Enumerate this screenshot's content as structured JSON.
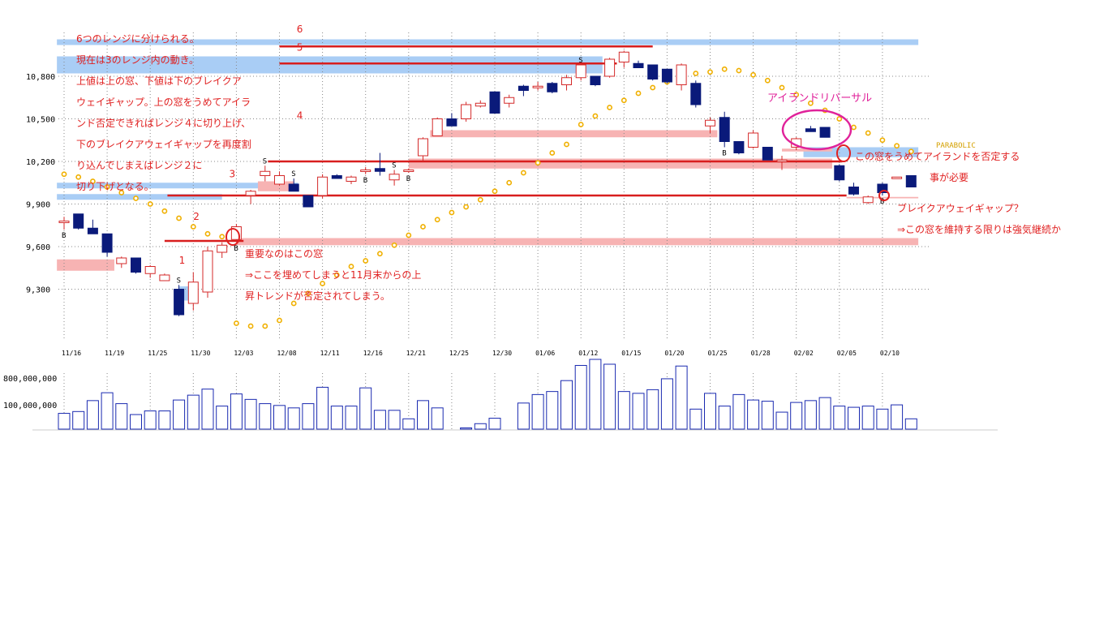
{
  "chart_data": {
    "type": "candlestick",
    "price_ticks": [
      {
        "value": 10800,
        "label": "10,800"
      },
      {
        "value": 10500,
        "label": "10,500"
      },
      {
        "value": 10200,
        "label": "10,200"
      },
      {
        "value": 9900,
        "label": "9,900"
      },
      {
        "value": 9600,
        "label": "9,600"
      },
      {
        "value": 9300,
        "label": "9,300"
      }
    ],
    "volume_ticks": [
      {
        "value": 800000000,
        "label": "800,000,000"
      },
      {
        "value": 100000000,
        "label": "100,000,000"
      }
    ],
    "date_labels": [
      {
        "i": 0,
        "label": "11/16"
      },
      {
        "i": 3,
        "label": "11/19"
      },
      {
        "i": 6,
        "label": "11/25"
      },
      {
        "i": 9,
        "label": "11/30"
      },
      {
        "i": 12,
        "label": "12/03"
      },
      {
        "i": 15,
        "label": "12/08"
      },
      {
        "i": 18,
        "label": "12/11"
      },
      {
        "i": 21,
        "label": "12/16"
      },
      {
        "i": 24,
        "label": "12/21"
      },
      {
        "i": 27,
        "label": "12/25"
      },
      {
        "i": 30,
        "label": "12/30"
      },
      {
        "i": 33,
        "label": "01/06"
      },
      {
        "i": 36,
        "label": "01/12"
      },
      {
        "i": 39,
        "label": "01/15"
      },
      {
        "i": 42,
        "label": "01/20"
      },
      {
        "i": 45,
        "label": "01/25"
      },
      {
        "i": 48,
        "label": "01/28"
      },
      {
        "i": 51,
        "label": "02/02"
      },
      {
        "i": 54,
        "label": "02/05"
      },
      {
        "i": 57,
        "label": "02/10"
      }
    ],
    "candles": [
      {
        "o": 9780,
        "h": 9810,
        "l": 9720,
        "c": 9780
      },
      {
        "o": 9830,
        "h": 9830,
        "l": 9720,
        "c": 9730
      },
      {
        "o": 9730,
        "h": 9790,
        "l": 9690,
        "c": 9690
      },
      {
        "o": 9690,
        "h": 9690,
        "l": 9530,
        "c": 9560
      },
      {
        "o": 9480,
        "h": 9530,
        "l": 9450,
        "c": 9520
      },
      {
        "o": 9520,
        "h": 9520,
        "l": 9410,
        "c": 9420
      },
      {
        "o": 9410,
        "h": 9470,
        "l": 9380,
        "c": 9460
      },
      {
        "o": 9360,
        "h": 9410,
        "l": 9360,
        "c": 9400
      },
      {
        "o": 9300,
        "h": 9330,
        "l": 9110,
        "c": 9120
      },
      {
        "o": 9200,
        "h": 9420,
        "l": 9150,
        "c": 9350
      },
      {
        "o": 9280,
        "h": 9600,
        "l": 9240,
        "c": 9570
      },
      {
        "o": 9560,
        "h": 9630,
        "l": 9520,
        "c": 9610
      },
      {
        "o": 9650,
        "h": 9760,
        "l": 9630,
        "c": 9740
      },
      {
        "o": 9960,
        "h": 10000,
        "l": 9900,
        "c": 9990
      },
      {
        "o": 10100,
        "h": 10170,
        "l": 10060,
        "c": 10130
      },
      {
        "o": 10040,
        "h": 10130,
        "l": 10030,
        "c": 10100
      },
      {
        "o": 10040,
        "h": 10080,
        "l": 9990,
        "c": 9990
      },
      {
        "o": 9960,
        "h": 9960,
        "l": 9880,
        "c": 9880
      },
      {
        "o": 9960,
        "h": 10110,
        "l": 9940,
        "c": 10090
      },
      {
        "o": 10100,
        "h": 10110,
        "l": 10080,
        "c": 10080
      },
      {
        "o": 10060,
        "h": 10100,
        "l": 10040,
        "c": 10090
      },
      {
        "o": 10140,
        "h": 10160,
        "l": 10110,
        "c": 10140
      },
      {
        "o": 10150,
        "h": 10260,
        "l": 10100,
        "c": 10130
      },
      {
        "o": 10070,
        "h": 10140,
        "l": 10030,
        "c": 10110
      },
      {
        "o": 10140,
        "h": 10150,
        "l": 10120,
        "c": 10140
      },
      {
        "o": 10240,
        "h": 10370,
        "l": 10200,
        "c": 10360
      },
      {
        "o": 10380,
        "h": 10510,
        "l": 10380,
        "c": 10500
      },
      {
        "o": 10500,
        "h": 10540,
        "l": 10450,
        "c": 10450
      },
      {
        "o": 10500,
        "h": 10620,
        "l": 10480,
        "c": 10600
      },
      {
        "o": 10590,
        "h": 10630,
        "l": 10580,
        "c": 10610
      },
      {
        "o": 10690,
        "h": 10690,
        "l": 10540,
        "c": 10540
      },
      {
        "o": 10610,
        "h": 10670,
        "l": 10580,
        "c": 10650
      },
      {
        "o": 10730,
        "h": 10740,
        "l": 10660,
        "c": 10700
      },
      {
        "o": 10720,
        "h": 10760,
        "l": 10700,
        "c": 10730
      },
      {
        "o": 10750,
        "h": 10760,
        "l": 10680,
        "c": 10690
      },
      {
        "o": 10740,
        "h": 10810,
        "l": 10700,
        "c": 10790
      },
      {
        "o": 10790,
        "h": 10880,
        "l": 10770,
        "c": 10880
      },
      {
        "o": 10800,
        "h": 10800,
        "l": 10730,
        "c": 10740
      },
      {
        "o": 10800,
        "h": 10930,
        "l": 10790,
        "c": 10920
      },
      {
        "o": 10900,
        "h": 10980,
        "l": 10860,
        "c": 10970
      },
      {
        "o": 10890,
        "h": 10910,
        "l": 10860,
        "c": 10860
      },
      {
        "o": 10880,
        "h": 10880,
        "l": 10770,
        "c": 10780
      },
      {
        "o": 10850,
        "h": 10850,
        "l": 10750,
        "c": 10760
      },
      {
        "o": 10740,
        "h": 10890,
        "l": 10700,
        "c": 10880
      },
      {
        "o": 10750,
        "h": 10770,
        "l": 10580,
        "c": 10600
      },
      {
        "o": 10450,
        "h": 10510,
        "l": 10400,
        "c": 10490
      },
      {
        "o": 10510,
        "h": 10550,
        "l": 10300,
        "c": 10340
      },
      {
        "o": 10340,
        "h": 10340,
        "l": 10250,
        "c": 10260
      },
      {
        "o": 10300,
        "h": 10420,
        "l": 10290,
        "c": 10400
      },
      {
        "o": 10300,
        "h": 10300,
        "l": 10210,
        "c": 10210
      },
      {
        "o": 10210,
        "h": 10240,
        "l": 10140,
        "c": 10210
      },
      {
        "o": 10300,
        "h": 10370,
        "l": 10280,
        "c": 10360
      },
      {
        "o": 10430,
        "h": 10450,
        "l": 10410,
        "c": 10410
      },
      {
        "o": 10440,
        "h": 10440,
        "l": 10370,
        "c": 10370
      },
      {
        "o": 10170,
        "h": 10180,
        "l": 10060,
        "c": 10070
      },
      {
        "o": 10020,
        "h": 10050,
        "l": 9960,
        "c": 9970
      },
      {
        "o": 9910,
        "h": 9960,
        "l": 9900,
        "c": 9950
      },
      {
        "o": 10040,
        "h": 10050,
        "l": 9960,
        "c": 9980
      },
      {
        "o": 10090,
        "h": 10090,
        "l": 10090,
        "c": 10090
      },
      {
        "o": 10100,
        "h": 10100,
        "l": 10020,
        "c": 10020
      }
    ],
    "parabolic_sar": [
      [
        0,
        10110
      ],
      [
        1,
        10090
      ],
      [
        2,
        10060
      ],
      [
        3,
        10020
      ],
      [
        4,
        9980
      ],
      [
        5,
        9940
      ],
      [
        6,
        9900
      ],
      [
        7,
        9850
      ],
      [
        8,
        9800
      ],
      [
        9,
        9740
      ],
      [
        10,
        9690
      ],
      [
        11,
        9670
      ],
      [
        12,
        9080
      ],
      [
        13,
        9090
      ],
      [
        14,
        9110
      ],
      [
        15,
        9140
      ],
      [
        16,
        9220
      ],
      [
        17,
        9290
      ],
      [
        18,
        9360
      ],
      [
        19,
        9420
      ],
      [
        20,
        9480
      ],
      [
        21,
        9530
      ],
      [
        22,
        9580
      ],
      [
        23,
        9630
      ],
      [
        24,
        9680
      ],
      [
        25,
        9740
      ],
      [
        26,
        9800
      ],
      [
        27,
        9860
      ],
      [
        28,
        9920
      ],
      [
        29,
        9990
      ],
      [
        30,
        10060
      ],
      [
        31,
        10130
      ],
      [
        32,
        10200
      ],
      [
        33,
        10270
      ],
      [
        34,
        10340
      ],
      [
        35,
        10400
      ],
      [
        36,
        10460
      ],
      [
        37,
        10520
      ],
      [
        38,
        10580
      ],
      [
        39,
        10630
      ],
      [
        40,
        10680
      ],
      [
        41,
        10720
      ],
      [
        42,
        10760
      ],
      [
        43,
        10800
      ],
      [
        44,
        10820
      ],
      [
        45,
        10830
      ],
      [
        46,
        10850
      ],
      [
        47,
        10840
      ],
      [
        48,
        10810
      ],
      [
        49,
        10770
      ],
      [
        50,
        10720
      ],
      [
        51,
        10670
      ],
      [
        52,
        10610
      ],
      [
        53,
        10560
      ],
      [
        54,
        10500
      ],
      [
        55,
        10440
      ],
      [
        56,
        10400
      ],
      [
        57,
        10350
      ],
      [
        58,
        10310
      ],
      [
        59,
        10270
      ]
    ],
    "parabolic_sar_bottom": [
      [
        12,
        9060
      ],
      [
        13,
        9040
      ],
      [
        14,
        9040
      ],
      [
        15,
        9080
      ],
      [
        16,
        9200
      ],
      [
        17,
        9270
      ],
      [
        18,
        9340
      ],
      [
        19,
        9400
      ],
      [
        20,
        9460
      ],
      [
        21,
        9500
      ],
      [
        22,
        9550
      ],
      [
        23,
        9610
      ],
      [
        24,
        9680
      ],
      [
        25,
        9740
      ],
      [
        26,
        9790
      ],
      [
        27,
        9840
      ],
      [
        28,
        9880
      ],
      [
        29,
        9930
      ],
      [
        30,
        9990
      ],
      [
        31,
        10050
      ],
      [
        32,
        10120
      ],
      [
        33,
        10190
      ],
      [
        34,
        10260
      ],
      [
        35,
        10320
      ]
    ],
    "signals": [
      {
        "i": 0,
        "text": "B",
        "pos": "below"
      },
      {
        "i": 8,
        "text": "S",
        "pos": "above"
      },
      {
        "i": 12,
        "text": "B",
        "pos": "below"
      },
      {
        "i": 14,
        "text": "S",
        "pos": "above"
      },
      {
        "i": 16,
        "text": "S",
        "pos": "above"
      },
      {
        "i": 21,
        "text": "B",
        "pos": "below"
      },
      {
        "i": 23,
        "text": "S",
        "pos": "above"
      },
      {
        "i": 24,
        "text": "B",
        "pos": "below"
      },
      {
        "i": 36,
        "text": "S",
        "pos": "above"
      },
      {
        "i": 46,
        "text": "B",
        "pos": "below"
      },
      {
        "i": 57,
        "text": "B",
        "pos": "below"
      }
    ],
    "volumes": [
      260,
      290,
      470,
      600,
      420,
      240,
      300,
      300,
      480,
      560,
      660,
      380,
      580,
      490,
      420,
      390,
      350,
      420,
      690,
      380,
      380,
      680,
      310,
      310,
      170,
      470,
      350,
      0,
      20,
      90,
      180,
      0,
      430,
      570,
      620,
      800,
      1050,
      1150,
      1070,
      620,
      590,
      650,
      830,
      1040,
      330,
      590,
      380,
      570,
      480,
      460,
      280,
      440,
      470,
      520,
      380,
      360,
      380,
      330,
      400,
      170
    ],
    "bands": [
      {
        "kind": "blue",
        "y1": 11060,
        "y2": 11020,
        "i1": -0.5,
        "i2": 59.5
      },
      {
        "kind": "blue",
        "y1": 10940,
        "y2": 10820,
        "i1": -0.5,
        "i2": 37.5
      },
      {
        "kind": "blue",
        "y1": 10050,
        "y2": 10010,
        "i1": -0.5,
        "i2": 16.3
      },
      {
        "kind": "blue",
        "y1": 9970,
        "y2": 9930,
        "i1": -0.5,
        "i2": 11.0
      },
      {
        "kind": "blue",
        "y1": 9320,
        "y2": 9220,
        "i1": 8.0,
        "i2": 9.0
      },
      {
        "kind": "blue",
        "y1": 10300,
        "y2": 10230,
        "i1": 51.5,
        "i2": 59.5
      },
      {
        "kind": "pink",
        "y1": 9510,
        "y2": 9430,
        "i1": -0.5,
        "i2": 3.5
      },
      {
        "kind": "pink",
        "y1": 10060,
        "y2": 9990,
        "i1": 13.5,
        "i2": 16.0
      },
      {
        "kind": "pink",
        "y1": 10420,
        "y2": 10370,
        "i1": 25.5,
        "i2": 45.5
      },
      {
        "kind": "pink",
        "y1": 10220,
        "y2": 10150,
        "i1": 24.0,
        "i2": 53.5
      },
      {
        "kind": "pink",
        "y1": 10290,
        "y2": 10270,
        "i1": 50.0,
        "i2": 53.5
      },
      {
        "kind": "pink",
        "y1": 9950,
        "y2": 9940,
        "i1": 54.5,
        "i2": 59.5
      },
      {
        "kind": "pink",
        "y1": 9660,
        "y2": 9610,
        "i1": 12.0,
        "i2": 59.5
      }
    ],
    "range_lines": [
      {
        "y": 11010,
        "i1": 15.0,
        "i2": 41.0
      },
      {
        "y": 10890,
        "i1": 15.0,
        "i2": 38.5
      },
      {
        "y": 10200,
        "i1": 14.2,
        "i2": 54.2
      },
      {
        "y": 9960,
        "i1": 7.2,
        "i2": 54.5
      },
      {
        "y": 9640,
        "i1": 7.0,
        "i2": 12.5
      }
    ],
    "range_numbers": [
      {
        "text": "6",
        "i": 16.2,
        "v": 11110
      },
      {
        "text": "5",
        "i": 16.2,
        "v": 10980
      },
      {
        "text": "4",
        "i": 16.2,
        "v": 10500
      },
      {
        "text": "3",
        "i": 11.5,
        "v": 10090
      },
      {
        "text": "2",
        "i": 9.0,
        "v": 9790
      },
      {
        "text": "1",
        "i": 8.0,
        "v": 9480
      }
    ],
    "notes_left": [
      "6つのレンジに分けられる。",
      "現在は3のレンジ内の動き。",
      "上値は上の窓、下値は下のブレイクア",
      "ウェイギャップ。上の窓をうめてアイラ",
      "ンド否定できればレンジ４に切り上げ、",
      "下のブレイクアウェイギャップを再度割",
      "り込んでしまえばレンジ２に",
      "切り下げとなる。"
    ],
    "notes_middle": [
      "重要なのはこの窓",
      "⇒ここを埋めてしまうと11月末からの上",
      "昇トレンドが否定されてしまう。"
    ],
    "note_island": "アイランドリバーサル",
    "notes_right": [
      "この窓をうめてアイランドを否定する",
      "事が必要"
    ],
    "notes_right2": [
      "ブレイクアウェイギャップ？",
      "⇒この窓を維持する限りは強気継続か"
    ],
    "parabolic_label": "PARABOLIC",
    "colors": {
      "up_candle": "#d42a2a",
      "down_candle": "#0a1a7a",
      "sar": "#f0b000",
      "volume": "#1a2ab0",
      "blue_band": "#a9cdf5",
      "pink_band": "#f7b3b3",
      "range_line": "#d81e1e",
      "note": "#e02020",
      "island": "#e0229a"
    }
  }
}
